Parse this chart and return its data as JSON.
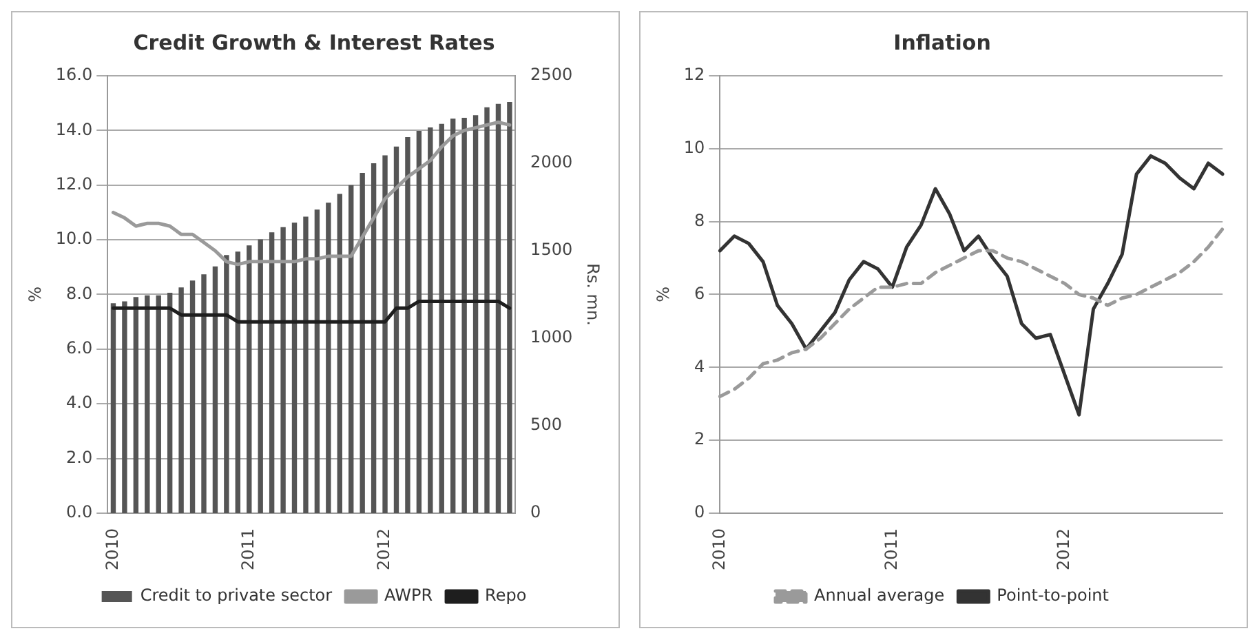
{
  "chart_data": [
    {
      "type": "bar",
      "title": "Credit Growth & Interest Rates",
      "ylabel": "%",
      "y2label": "Rs. mn.",
      "categories": [
        "2010",
        null,
        null,
        null,
        null,
        null,
        null,
        null,
        null,
        null,
        null,
        null,
        "2011",
        null,
        null,
        null,
        null,
        null,
        null,
        null,
        null,
        null,
        null,
        null,
        "2012",
        null,
        null,
        null,
        null,
        null,
        null,
        null,
        null,
        null,
        null,
        null
      ],
      "series": [
        {
          "name": "Credit to private sector",
          "type": "bar",
          "axis": "y2",
          "color": "#555555",
          "values": [
            1200,
            1210,
            1235,
            1245,
            1245,
            1260,
            1290,
            1330,
            1365,
            1410,
            1475,
            1495,
            1530,
            1565,
            1605,
            1635,
            1660,
            1695,
            1735,
            1775,
            1825,
            1875,
            1945,
            2000,
            2045,
            2095,
            2150,
            2185,
            2205,
            2225,
            2255,
            2260,
            2275,
            2320,
            2340,
            2350
          ]
        },
        {
          "name": "AWPR",
          "type": "line",
          "color": "#9a9a9a",
          "values": [
            11.0,
            10.8,
            10.5,
            10.6,
            10.6,
            10.5,
            10.2,
            10.2,
            9.9,
            9.6,
            9.2,
            9.1,
            9.2,
            9.2,
            9.2,
            9.2,
            9.2,
            9.3,
            9.3,
            9.4,
            9.4,
            9.4,
            10.1,
            10.8,
            11.5,
            11.9,
            12.3,
            12.6,
            12.9,
            13.4,
            13.8,
            14.0,
            14.1,
            14.2,
            14.3,
            14.2
          ]
        },
        {
          "name": "Repo",
          "type": "line",
          "color": "#1e1e1e",
          "values": [
            7.5,
            7.5,
            7.5,
            7.5,
            7.5,
            7.5,
            7.25,
            7.25,
            7.25,
            7.25,
            7.25,
            7.0,
            7.0,
            7.0,
            7.0,
            7.0,
            7.0,
            7.0,
            7.0,
            7.0,
            7.0,
            7.0,
            7.0,
            7.0,
            7.0,
            7.5,
            7.5,
            7.75,
            7.75,
            7.75,
            7.75,
            7.75,
            7.75,
            7.75,
            7.75,
            7.5
          ]
        }
      ],
      "ylim": [
        0,
        16
      ],
      "yticks": [
        {
          "value": 0,
          "label": "0.0"
        },
        {
          "value": 2,
          "label": "2.0"
        },
        {
          "value": 4,
          "label": "4.0"
        },
        {
          "value": 6,
          "label": "6.0"
        },
        {
          "value": 8,
          "label": "8.0"
        },
        {
          "value": 10,
          "label": "10.0"
        },
        {
          "value": 12,
          "label": "12.0"
        },
        {
          "value": 14,
          "label": "14.0"
        },
        {
          "value": 16,
          "label": "16.0"
        }
      ],
      "y2lim": [
        0,
        2500
      ],
      "y2ticks": [
        0,
        500,
        1000,
        1500,
        2000,
        2500
      ],
      "grid": "y",
      "legend": "bottom",
      "marker": "none"
    },
    {
      "type": "line",
      "title": "Inflation",
      "ylabel": "%",
      "categories": [
        "2010",
        null,
        null,
        null,
        null,
        null,
        null,
        null,
        null,
        null,
        null,
        null,
        "2011",
        null,
        null,
        null,
        null,
        null,
        null,
        null,
        null,
        null,
        null,
        null,
        "2012",
        null,
        null,
        null,
        null,
        null,
        null,
        null,
        null,
        null,
        null,
        null
      ],
      "series": [
        {
          "name": "Annual average",
          "color": "#9a9a9a",
          "line_style": "dashed",
          "values": [
            3.2,
            3.4,
            3.7,
            4.1,
            4.2,
            4.4,
            4.5,
            4.8,
            5.2,
            5.6,
            5.9,
            6.2,
            6.2,
            6.3,
            6.3,
            6.6,
            6.8,
            7.0,
            7.2,
            7.2,
            7.0,
            6.9,
            6.7,
            6.5,
            6.3,
            6.0,
            5.9,
            5.7,
            5.9,
            6.0,
            6.2,
            6.4,
            6.6,
            6.9,
            7.3,
            7.8
          ]
        },
        {
          "name": "Point-to-point",
          "color": "#333333",
          "line_style": "solid",
          "values": [
            7.2,
            7.6,
            7.4,
            6.9,
            5.7,
            5.2,
            4.5,
            5.0,
            5.5,
            6.4,
            6.9,
            6.7,
            6.2,
            7.3,
            7.9,
            8.9,
            8.2,
            7.2,
            7.6,
            7.0,
            6.5,
            5.2,
            4.8,
            4.9,
            3.8,
            2.7,
            5.6,
            6.3,
            7.1,
            9.3,
            9.8,
            9.6,
            9.2,
            8.9,
            9.6,
            9.3
          ]
        }
      ],
      "ylim": [
        0,
        12
      ],
      "yticks": [
        0,
        2,
        4,
        6,
        8,
        10,
        12
      ],
      "grid": "y",
      "legend": "bottom",
      "marker": "none"
    }
  ]
}
